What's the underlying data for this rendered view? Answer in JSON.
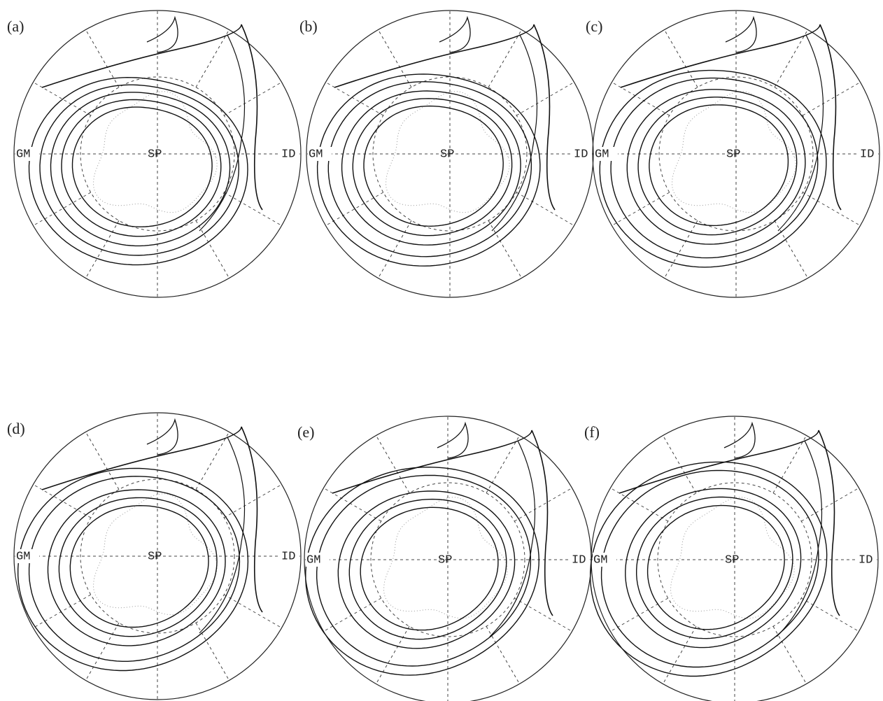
{
  "panels": [
    {
      "label": "(a)",
      "left": "GM",
      "center": "SP",
      "right": "ID"
    },
    {
      "label": "(b)",
      "left": "GM",
      "center": "SP",
      "right": "ID"
    },
    {
      "label": "(c)",
      "left": "GM",
      "center": "SP",
      "right": "ID"
    },
    {
      "label": "(d)",
      "left": "GM",
      "center": "SP",
      "right": "ID"
    },
    {
      "label": "(e)",
      "left": "GM",
      "center": "SP",
      "right": "ID"
    },
    {
      "label": "(f)",
      "left": "GM",
      "center": "SP",
      "right": "ID"
    }
  ]
}
